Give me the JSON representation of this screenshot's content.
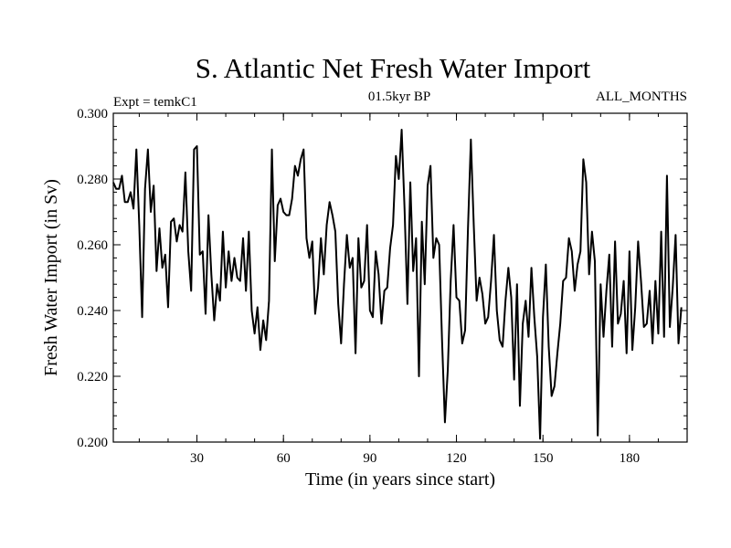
{
  "chart_data": {
    "type": "line",
    "title": "S. Atlantic Net Fresh Water Import",
    "subtitle_left": "Expt = temkC1",
    "subtitle_center": "01.5kyr BP",
    "subtitle_right": "ALL_MONTHS",
    "xlabel": "Time (in years since start)",
    "ylabel": "Fresh Water Import (in Sv)",
    "xlim": [
      1,
      200
    ],
    "ylim": [
      0.2,
      0.3
    ],
    "x_ticks": [
      30,
      60,
      90,
      120,
      150,
      180
    ],
    "x_tick_labels": [
      "30",
      "60",
      "90",
      "120",
      "150",
      "180"
    ],
    "y_ticks": [
      0.2,
      0.22,
      0.24,
      0.26,
      0.28,
      0.3
    ],
    "y_tick_labels": [
      "0.200",
      "0.220",
      "0.240",
      "0.260",
      "0.280",
      "0.300"
    ],
    "grid": false,
    "line_color": "#000000",
    "series": [
      {
        "name": "Fresh Water Import",
        "x_start": 1,
        "x_step": 1,
        "values": [
          0.279,
          0.277,
          0.277,
          0.281,
          0.273,
          0.273,
          0.276,
          0.271,
          0.289,
          0.266,
          0.238,
          0.277,
          0.289,
          0.27,
          0.278,
          0.252,
          0.265,
          0.253,
          0.257,
          0.241,
          0.267,
          0.268,
          0.261,
          0.266,
          0.264,
          0.282,
          0.258,
          0.246,
          0.289,
          0.29,
          0.257,
          0.258,
          0.239,
          0.269,
          0.251,
          0.237,
          0.248,
          0.243,
          0.264,
          0.247,
          0.258,
          0.249,
          0.256,
          0.25,
          0.249,
          0.262,
          0.246,
          0.264,
          0.24,
          0.233,
          0.241,
          0.228,
          0.237,
          0.231,
          0.243,
          0.289,
          0.255,
          0.272,
          0.274,
          0.27,
          0.269,
          0.269,
          0.274,
          0.284,
          0.281,
          0.286,
          0.289,
          0.262,
          0.256,
          0.261,
          0.239,
          0.247,
          0.262,
          0.251,
          0.266,
          0.273,
          0.269,
          0.264,
          0.242,
          0.23,
          0.248,
          0.263,
          0.253,
          0.256,
          0.227,
          0.262,
          0.247,
          0.249,
          0.266,
          0.24,
          0.238,
          0.258,
          0.251,
          0.236,
          0.246,
          0.247,
          0.259,
          0.266,
          0.287,
          0.28,
          0.295,
          0.271,
          0.242,
          0.279,
          0.252,
          0.262,
          0.22,
          0.267,
          0.248,
          0.278,
          0.284,
          0.256,
          0.262,
          0.26,
          0.231,
          0.206,
          0.222,
          0.249,
          0.266,
          0.244,
          0.243,
          0.23,
          0.234,
          0.265,
          0.292,
          0.266,
          0.243,
          0.25,
          0.245,
          0.236,
          0.238,
          0.249,
          0.263,
          0.24,
          0.231,
          0.229,
          0.243,
          0.253,
          0.244,
          0.219,
          0.248,
          0.211,
          0.236,
          0.243,
          0.232,
          0.253,
          0.238,
          0.226,
          0.201,
          0.238,
          0.254,
          0.229,
          0.214,
          0.217,
          0.227,
          0.236,
          0.249,
          0.25,
          0.262,
          0.258,
          0.246,
          0.254,
          0.258,
          0.286,
          0.279,
          0.251,
          0.264,
          0.255,
          0.202,
          0.248,
          0.232,
          0.246,
          0.257,
          0.229,
          0.261,
          0.236,
          0.239,
          0.249,
          0.227,
          0.258,
          0.228,
          0.241,
          0.261,
          0.249,
          0.235,
          0.236,
          0.246,
          0.23,
          0.249,
          0.233,
          0.264,
          0.232,
          0.281,
          0.235,
          0.247,
          0.263,
          0.23,
          0.241
        ]
      }
    ]
  }
}
